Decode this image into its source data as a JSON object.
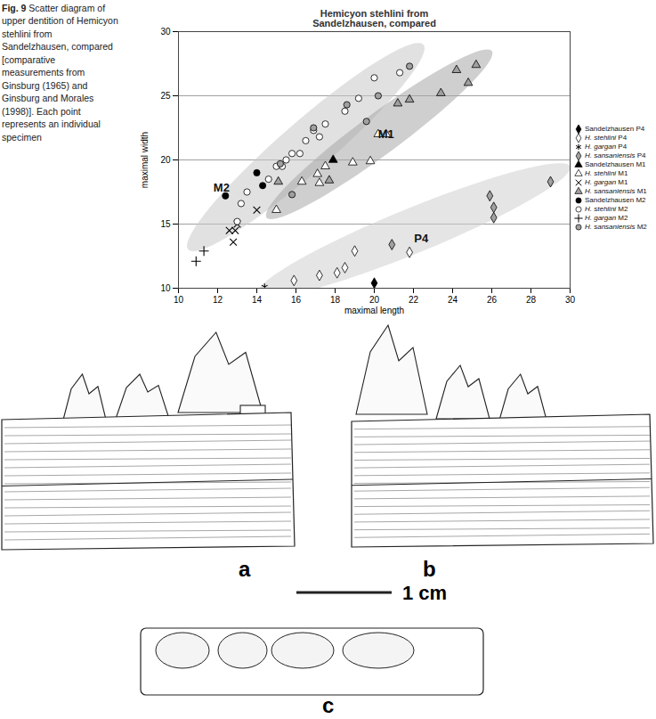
{
  "chart_data": {
    "type": "scatter",
    "title": "Hemicyon stehlini from Sandelzhausen, compared",
    "x_label": "maximal length",
    "y_label": "maximal width",
    "xlim": [
      10,
      30
    ],
    "xticks": [
      10,
      12,
      14,
      16,
      18,
      20,
      22,
      24,
      26,
      28,
      30
    ],
    "ylim": [
      10,
      30
    ],
    "yticks": [
      10,
      15,
      20,
      25,
      30
    ],
    "grid": "y",
    "legend": "right",
    "annotations": [
      {
        "text": "M2",
        "x": 12.2,
        "y": 17.8
      },
      {
        "text": "M1",
        "x": 20.6,
        "y": 22.0
      },
      {
        "text": "P4",
        "x": 22.4,
        "y": 13.9
      }
    ],
    "regions": [
      {
        "center": [
          16.5,
          21.0
        ],
        "semi_major": [
          6.0,
          8.0
        ],
        "semi_minor": [
          0.9,
          -1.4
        ],
        "color": "#c8c8c8"
      },
      {
        "center": [
          20.25,
          22.0
        ],
        "semi_major": [
          5.75,
          6.5
        ],
        "semi_minor": [
          0.65,
          -1.25
        ],
        "color": "#a8a8a8"
      },
      {
        "center": [
          22.0,
          14.5
        ],
        "semi_major": [
          8.0,
          5.0
        ],
        "semi_minor": [
          0.47,
          -1.6
        ],
        "color": "#d0d0d0"
      }
    ],
    "series": [
      {
        "name": "Sandelzhausen P4",
        "marker": "diamond",
        "color": "#000000",
        "x": [
          20.0
        ],
        "values": [
          10.4
        ]
      },
      {
        "name": "H. stehlini P4",
        "marker": "diamond",
        "color": "#ffffff",
        "x": [
          15.9,
          17.2,
          18.1,
          18.5,
          19.0,
          21.8
        ],
        "values": [
          10.6,
          11.0,
          11.2,
          11.6,
          12.9,
          12.8
        ]
      },
      {
        "name": "H. gargan P4",
        "marker": "asterisk",
        "color": "#000000",
        "x": [
          14.4
        ],
        "values": [
          10.1
        ]
      },
      {
        "name": "H. sansaniensis P4",
        "marker": "diamond",
        "color": "#a0a0a0",
        "x": [
          20.9,
          25.9,
          26.1,
          26.1,
          29.0
        ],
        "values": [
          13.4,
          17.2,
          16.3,
          15.5,
          18.3
        ]
      },
      {
        "name": "Sandelzhausen M1",
        "marker": "triangle",
        "color": "#000000",
        "x": [
          17.9
        ],
        "values": [
          20.0
        ]
      },
      {
        "name": "H. stehlini M1",
        "marker": "triangle",
        "color": "#ffffff",
        "x": [
          15.0,
          16.3,
          17.2,
          17.1,
          17.5,
          18.9,
          19.8,
          20.2,
          20.6
        ],
        "values": [
          16.1,
          18.3,
          18.2,
          18.9,
          19.5,
          19.8,
          19.9,
          22.0,
          22.0
        ]
      },
      {
        "name": "H. gargan M1",
        "marker": "times",
        "color": "#000000",
        "x": [
          12.6,
          12.9,
          12.8,
          14.0,
          13.0
        ],
        "values": [
          14.5,
          14.5,
          13.6,
          16.1,
          15.0
        ]
      },
      {
        "name": "H. sansaniensis M1",
        "marker": "triangle",
        "color": "#a0a0a0",
        "x": [
          15.1,
          17.7,
          21.2,
          21.8,
          23.4,
          24.2,
          24.8,
          25.2
        ],
        "values": [
          18.3,
          18.4,
          24.4,
          24.7,
          25.2,
          27.0,
          26.0,
          27.4
        ]
      },
      {
        "name": "Sandelzhausen M2",
        "marker": "circle",
        "color": "#000000",
        "x": [
          12.4,
          14.0,
          14.3
        ],
        "values": [
          17.2,
          19.0,
          18.0
        ]
      },
      {
        "name": "H. stehlini M2",
        "marker": "circle",
        "color": "#ffffff",
        "x": [
          13.0,
          13.2,
          13.5,
          14.6,
          15.0,
          15.3,
          15.5,
          15.8,
          16.2,
          16.5,
          16.9,
          17.2,
          17.5,
          18.5,
          19.2,
          20.0,
          21.3
        ],
        "values": [
          15.2,
          16.6,
          17.5,
          18.5,
          19.5,
          19.5,
          20.0,
          20.5,
          20.5,
          21.5,
          22.3,
          21.8,
          22.8,
          23.8,
          24.8,
          26.4,
          26.8
        ]
      },
      {
        "name": "H. gargan M2",
        "marker": "plus",
        "color": "#000000",
        "x": [
          10.9,
          11.3
        ],
        "values": [
          12.1,
          12.9
        ]
      },
      {
        "name": "H. sansaniensis M2",
        "marker": "circle",
        "color": "#a0a0a0",
        "x": [
          15.8,
          15.2,
          16.9,
          18.6,
          19.6,
          20.2,
          21.8
        ],
        "values": [
          17.3,
          19.7,
          22.5,
          24.3,
          23.0,
          25.0,
          27.3
        ]
      }
    ]
  },
  "caption": {
    "label": "Fig. 9",
    "text": "Scatter diagram of upper dentition of Hemicyon stehlini from Sandelzhausen, compared [comparative measurements from Ginsburg (1965) and Ginsburg and Morales (1998)]. Each point represents an individual specimen"
  },
  "drawing": {
    "panel_labels": [
      "a",
      "b",
      "c"
    ],
    "scale_bar": "1 cm"
  }
}
